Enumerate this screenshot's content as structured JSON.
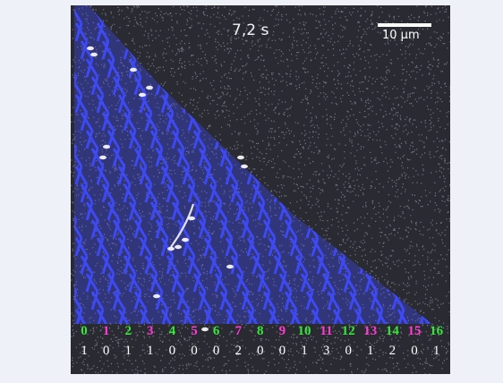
{
  "image": {
    "timestamp": "7,2 s",
    "scale_bar_label": "10 µm",
    "colors": {
      "background": "#2a2a33",
      "noise": "#d8d8e8",
      "mesh": "#3f4bff",
      "speckle": "#ffffff",
      "even_label": "#37e83a",
      "odd_label": "#ff3cd4",
      "count_label": "#ffffff"
    },
    "lanes": [
      {
        "index": "0",
        "count": "1"
      },
      {
        "index": "1",
        "count": "0"
      },
      {
        "index": "2",
        "count": "1"
      },
      {
        "index": "3",
        "count": "1"
      },
      {
        "index": "4",
        "count": "0"
      },
      {
        "index": "5",
        "count": "0"
      },
      {
        "index": "6",
        "count": "0"
      },
      {
        "index": "7",
        "count": "2"
      },
      {
        "index": "8",
        "count": "0"
      },
      {
        "index": "9",
        "count": "0"
      },
      {
        "index": "10",
        "count": "1"
      },
      {
        "index": "11",
        "count": "3"
      },
      {
        "index": "12",
        "count": "0"
      },
      {
        "index": "13",
        "count": "1"
      },
      {
        "index": "14",
        "count": "2"
      },
      {
        "index": "15",
        "count": "0"
      },
      {
        "index": "16",
        "count": "1"
      }
    ]
  }
}
